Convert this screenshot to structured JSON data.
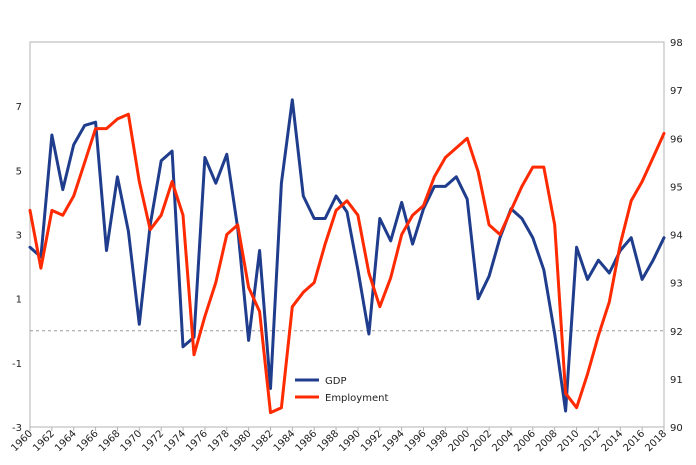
{
  "chart_data": {
    "type": "line",
    "title": "",
    "xlabel": "",
    "ylabel_left": "",
    "ylabel_right": "",
    "x": [
      1960,
      1961,
      1962,
      1963,
      1964,
      1965,
      1966,
      1967,
      1968,
      1969,
      1970,
      1971,
      1972,
      1973,
      1974,
      1975,
      1976,
      1977,
      1978,
      1979,
      1980,
      1981,
      1982,
      1983,
      1984,
      1985,
      1986,
      1987,
      1988,
      1989,
      1990,
      1991,
      1992,
      1993,
      1994,
      1995,
      1996,
      1997,
      1998,
      1999,
      2000,
      2001,
      2002,
      2003,
      2004,
      2005,
      2006,
      2007,
      2008,
      2009,
      2010,
      2011,
      2012,
      2013,
      2014,
      2015,
      2016,
      2017,
      2018
    ],
    "xlim": [
      1960,
      2018
    ],
    "x_tick_labels": [
      "1960",
      "1962",
      "1964",
      "1966",
      "1968",
      "1970",
      "1972",
      "1974",
      "1976",
      "1978",
      "1980",
      "1982",
      "1984",
      "1986",
      "1988",
      "1990",
      "1992",
      "1994",
      "1996",
      "1998",
      "2000",
      "2002",
      "2004",
      "2006",
      "2008",
      "2010",
      "2012",
      "2014",
      "2016",
      "2018"
    ],
    "y_left": {
      "lim": [
        -3,
        9
      ],
      "tick_labels": [
        "-3",
        "-1",
        "1",
        "3",
        "5",
        "7"
      ],
      "tick_values": [
        -3,
        -1,
        1,
        3,
        5,
        7
      ]
    },
    "y_right": {
      "lim": [
        90,
        98
      ],
      "tick_labels": [
        "90",
        "91",
        "92",
        "93",
        "94",
        "95",
        "96",
        "97",
        "98"
      ],
      "tick_values": [
        90,
        91,
        92,
        93,
        94,
        95,
        96,
        97,
        98
      ]
    },
    "series": [
      {
        "name": "GDP",
        "axis": "left",
        "color": "#1f3d8c",
        "values": [
          2.6,
          2.3,
          6.1,
          4.4,
          5.8,
          6.4,
          6.5,
          2.5,
          4.8,
          3.1,
          0.2,
          3.3,
          5.3,
          5.6,
          -0.5,
          -0.2,
          5.4,
          4.6,
          5.5,
          3.2,
          -0.3,
          2.5,
          -1.8,
          4.6,
          7.2,
          4.2,
          3.5,
          3.5,
          4.2,
          3.7,
          1.9,
          -0.1,
          3.5,
          2.8,
          4.0,
          2.7,
          3.8,
          4.5,
          4.5,
          4.8,
          4.1,
          1.0,
          1.7,
          2.9,
          3.8,
          3.5,
          2.9,
          1.9,
          -0.1,
          -2.5,
          2.6,
          1.6,
          2.2,
          1.8,
          2.5,
          2.9,
          1.6,
          2.2,
          2.9
        ]
      },
      {
        "name": "Employment",
        "axis": "right",
        "color": "#ff2a00",
        "values": [
          94.5,
          93.3,
          94.5,
          94.4,
          94.8,
          95.5,
          96.2,
          96.2,
          96.4,
          96.5,
          95.1,
          94.1,
          94.4,
          95.1,
          94.4,
          91.5,
          92.3,
          93.0,
          94.0,
          94.2,
          92.9,
          92.4,
          90.3,
          90.4,
          92.5,
          92.8,
          93.0,
          93.8,
          94.5,
          94.7,
          94.4,
          93.2,
          92.5,
          93.1,
          94.0,
          94.4,
          94.6,
          95.2,
          95.6,
          95.8,
          96.0,
          95.3,
          94.2,
          94.0,
          94.5,
          95.0,
          95.4,
          95.4,
          94.2,
          90.7,
          90.4,
          91.1,
          91.9,
          92.6,
          93.8,
          94.7,
          95.1,
          95.6,
          96.1
        ]
      }
    ],
    "legend": {
      "placement": "bottom-center",
      "entries": [
        "GDP",
        "Employment"
      ]
    },
    "grid": false
  }
}
